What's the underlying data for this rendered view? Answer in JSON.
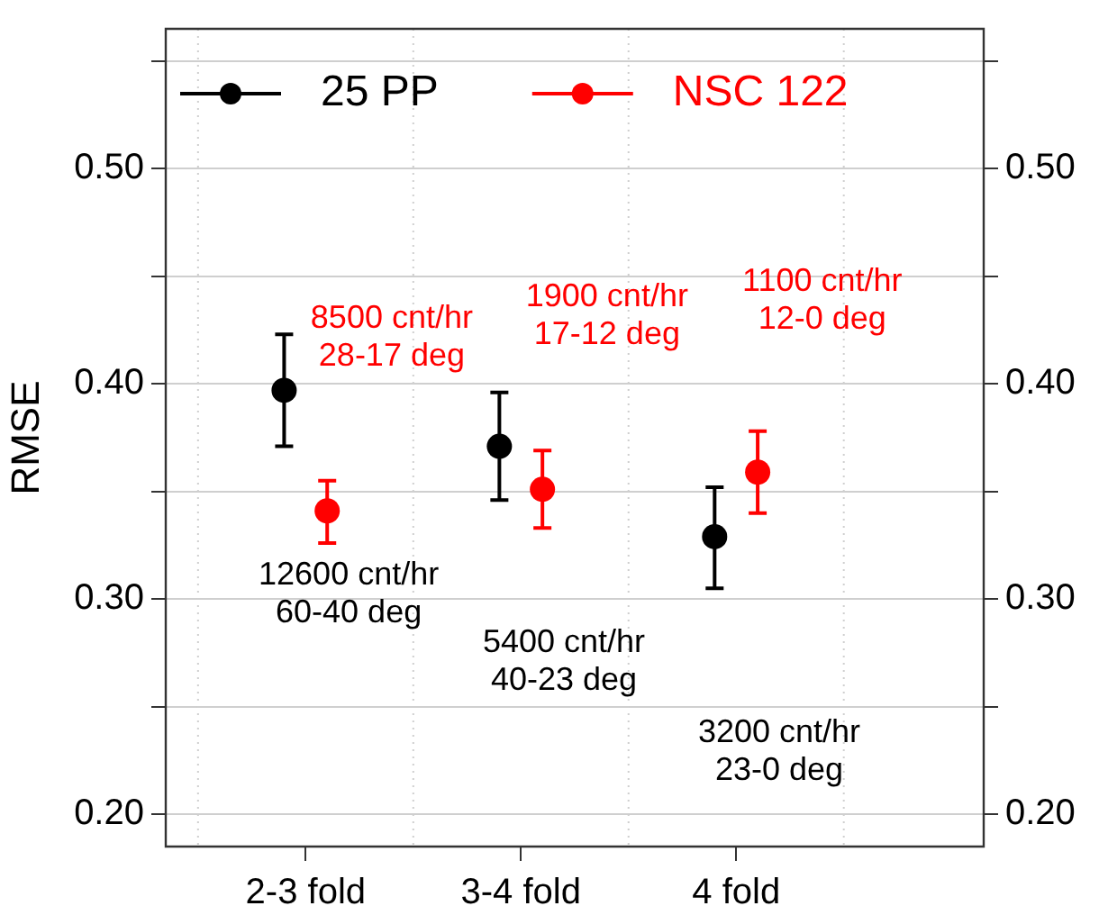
{
  "chart_data": {
    "type": "scatter",
    "ylabel": "RMSE",
    "categories": [
      "2-3 fold",
      "3-4 fold",
      "4 fold"
    ],
    "series": [
      {
        "name": "25 PP",
        "color": "#000000",
        "values": [
          0.397,
          0.371,
          0.329
        ],
        "errors": [
          [
            0.371,
            0.423
          ],
          [
            0.346,
            0.396
          ],
          [
            0.305,
            0.352
          ]
        ]
      },
      {
        "name": "NSC 122",
        "color": "#ff0000",
        "values": [
          0.341,
          0.351,
          0.359
        ],
        "errors": [
          [
            0.326,
            0.355
          ],
          [
            0.333,
            0.369
          ],
          [
            0.34,
            0.378
          ]
        ]
      }
    ],
    "ylim": [
      0.185,
      0.565
    ],
    "yticks": [
      {
        "value": 0.2,
        "label": "0.20"
      },
      {
        "value": 0.25,
        "label": null
      },
      {
        "value": 0.3,
        "label": "0.30"
      },
      {
        "value": 0.35,
        "label": null
      },
      {
        "value": 0.4,
        "label": "0.40"
      },
      {
        "value": 0.45,
        "label": null
      },
      {
        "value": 0.5,
        "label": "0.50"
      },
      {
        "value": 0.55,
        "label": null
      }
    ],
    "y2lim": [
      0.185,
      0.565
    ],
    "y2ticks": [
      {
        "value": 0.2,
        "label": "0.20"
      },
      {
        "value": 0.25,
        "label": null
      },
      {
        "value": 0.3,
        "label": "0.30"
      },
      {
        "value": 0.35,
        "label": null
      },
      {
        "value": 0.4,
        "label": "0.40"
      },
      {
        "value": 0.45,
        "label": null
      },
      {
        "value": 0.5,
        "label": "0.50"
      },
      {
        "value": 0.55,
        "label": null
      }
    ],
    "grid": true,
    "legend": "top left",
    "marker": "circle",
    "annotations": [
      "12600 cnt/hr\n60-40 deg",
      "8500 cnt/hr\n28-17 deg",
      "5400 cnt/hr\n40-23 deg",
      "1900 cnt/hr\n17-12 deg",
      "3200 cnt/hr\n23-0 deg",
      "1100 cnt/hr\n12-0 deg"
    ]
  }
}
